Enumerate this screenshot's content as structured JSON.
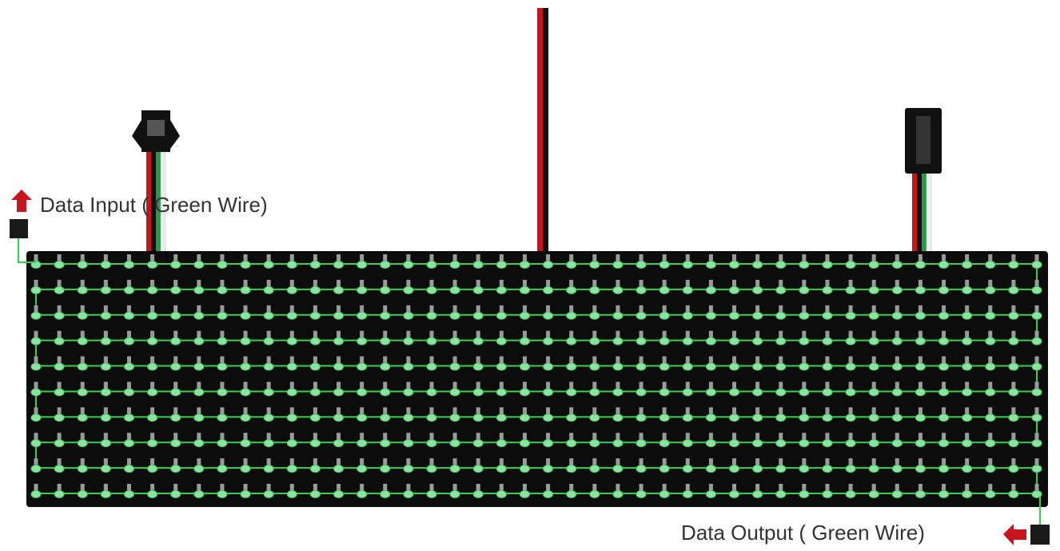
{
  "labels": {
    "input": "Data Input ( Green Wire)",
    "output": "Data Output ( Green Wire)"
  }
}
